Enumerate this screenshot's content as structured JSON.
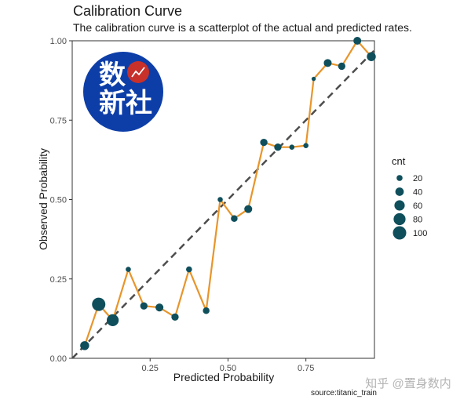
{
  "header": {
    "title": "Calibration Curve",
    "subtitle": "The calibration curve is a scatterplot of the actual and predicted rates."
  },
  "caption": "source:titanic_train",
  "watermark": "知乎 @置身数内",
  "logo": {
    "line1": "数",
    "line2": "新社",
    "circle_color": "#0d3ea8",
    "badge_color": "#c8302a"
  },
  "colors": {
    "line": "#e8952b",
    "point": "#0f4f5c",
    "reference": "#4d4d4d",
    "frame": "#333333"
  },
  "chart_data": {
    "type": "scatter",
    "title": "Calibration Curve",
    "subtitle": "The calibration curve is a scatterplot of the actual and predicted rates.",
    "xlabel": "Predicted Probability",
    "ylabel": "Observed Probability",
    "xlim": [
      0.0,
      0.97
    ],
    "ylim": [
      0.0,
      1.0
    ],
    "x_ticks": [
      0.25,
      0.5,
      0.75
    ],
    "x_tick_labels": [
      "0.25",
      "0.50",
      "0.75"
    ],
    "y_ticks": [
      0.0,
      0.25,
      0.5,
      0.75,
      1.0
    ],
    "y_tick_labels": [
      "0.00",
      "0.25",
      "0.50",
      "0.75",
      "1.00"
    ],
    "grid": false,
    "reference_line": "dashed diagonal y = x",
    "size_legend": {
      "title": "cnt",
      "position": "right",
      "values": [
        20,
        40,
        60,
        80,
        100
      ],
      "labels": [
        "20",
        "40",
        "60",
        "80",
        "100"
      ]
    },
    "points": [
      {
        "x": 0.04,
        "y": 0.04,
        "cnt": 45
      },
      {
        "x": 0.085,
        "y": 0.17,
        "cnt": 100
      },
      {
        "x": 0.13,
        "y": 0.12,
        "cnt": 80
      },
      {
        "x": 0.18,
        "y": 0.28,
        "cnt": 15
      },
      {
        "x": 0.23,
        "y": 0.165,
        "cnt": 30
      },
      {
        "x": 0.28,
        "y": 0.16,
        "cnt": 35
      },
      {
        "x": 0.33,
        "y": 0.13,
        "cnt": 30
      },
      {
        "x": 0.375,
        "y": 0.28,
        "cnt": 20
      },
      {
        "x": 0.43,
        "y": 0.15,
        "cnt": 25
      },
      {
        "x": 0.475,
        "y": 0.5,
        "cnt": 15
      },
      {
        "x": 0.52,
        "y": 0.44,
        "cnt": 25
      },
      {
        "x": 0.565,
        "y": 0.47,
        "cnt": 35
      },
      {
        "x": 0.615,
        "y": 0.68,
        "cnt": 30
      },
      {
        "x": 0.66,
        "y": 0.665,
        "cnt": 30
      },
      {
        "x": 0.705,
        "y": 0.665,
        "cnt": 15
      },
      {
        "x": 0.75,
        "y": 0.67,
        "cnt": 15
      },
      {
        "x": 0.775,
        "y": 0.88,
        "cnt": 10
      },
      {
        "x": 0.82,
        "y": 0.93,
        "cnt": 35
      },
      {
        "x": 0.865,
        "y": 0.92,
        "cnt": 30
      },
      {
        "x": 0.915,
        "y": 1.0,
        "cnt": 35
      },
      {
        "x": 0.96,
        "y": 0.95,
        "cnt": 45
      }
    ]
  }
}
